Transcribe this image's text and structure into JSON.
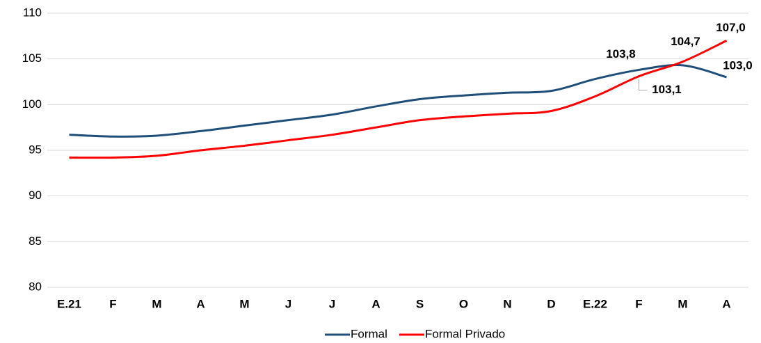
{
  "chart_data": {
    "type": "line",
    "categories": [
      "E.21",
      "F",
      "M",
      "A",
      "M",
      "J",
      "J",
      "A",
      "S",
      "O",
      "N",
      "D",
      "E.22",
      "F",
      "M",
      "A"
    ],
    "series": [
      {
        "name": "Formal",
        "color": "#1f4e79",
        "values": [
          96.7,
          96.5,
          96.6,
          97.1,
          97.7,
          98.3,
          98.9,
          99.8,
          100.6,
          101.0,
          101.3,
          101.5,
          102.8,
          103.8,
          104.3,
          103.0
        ],
        "value_labels": [
          null,
          null,
          null,
          null,
          null,
          null,
          null,
          null,
          null,
          null,
          null,
          null,
          null,
          "103,8",
          null,
          "103,0"
        ]
      },
      {
        "name": "Formal Privado",
        "color": "#ff0000",
        "values": [
          94.2,
          94.2,
          94.4,
          95.0,
          95.5,
          96.1,
          96.7,
          97.5,
          98.3,
          98.7,
          99.0,
          99.3,
          100.9,
          103.1,
          104.7,
          107.0
        ],
        "value_labels": [
          null,
          null,
          null,
          null,
          null,
          null,
          null,
          null,
          null,
          null,
          null,
          null,
          null,
          "103,1",
          "104,7",
          "107,0"
        ]
      }
    ],
    "ylim": [
      80,
      110
    ],
    "yticks": [
      80,
      85,
      90,
      95,
      100,
      105,
      110
    ],
    "grid": true,
    "legend": "bottom"
  }
}
